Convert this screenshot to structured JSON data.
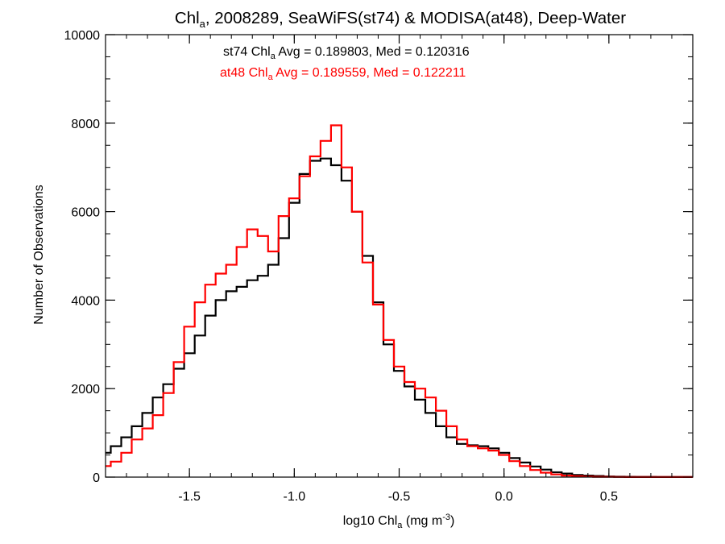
{
  "chart_data": {
    "type": "line",
    "title": {
      "pre": "Chl",
      "sub": "a",
      "post": ", 2008289, SeaWiFS(st74) & MODISA(at48), Deep-Water"
    },
    "xlabel": {
      "pre": "log10 Chl",
      "sub": "a",
      "mid": " (mg m",
      "sup": "-3",
      "post": ")"
    },
    "ylabel": "Number of Observations",
    "xlim": [
      -1.9,
      0.9
    ],
    "ylim": [
      0,
      10000
    ],
    "x_ticks": [
      {
        "value": -1.5,
        "label": "-1.5"
      },
      {
        "value": -1.0,
        "label": "-1.0"
      },
      {
        "value": -0.5,
        "label": "-0.5"
      },
      {
        "value": 0.0,
        "label": "0.0"
      },
      {
        "value": 0.5,
        "label": "0.5"
      }
    ],
    "y_ticks": [
      {
        "value": 0,
        "label": "0"
      },
      {
        "value": 2000,
        "label": "2000"
      },
      {
        "value": 4000,
        "label": "4000"
      },
      {
        "value": 6000,
        "label": "6000"
      },
      {
        "value": 8000,
        "label": "8000"
      },
      {
        "value": 10000,
        "label": "10000"
      }
    ],
    "grid": false,
    "step_style": "histogram",
    "annotations": [
      {
        "pre": "st74 Chl",
        "sub": "a",
        "post": " Avg = 0.189803, Med = 0.120316",
        "color": "#000000"
      },
      {
        "pre": "at48 Chl",
        "sub": "a",
        "post": " Avg = 0.189559, Med = 0.122211",
        "color": "#ff0000"
      }
    ],
    "series": [
      {
        "key": "st74",
        "color": "#000000",
        "x": [
          -1.9,
          -1.85,
          -1.8,
          -1.75,
          -1.7,
          -1.65,
          -1.6,
          -1.55,
          -1.5,
          -1.45,
          -1.4,
          -1.35,
          -1.3,
          -1.25,
          -1.2,
          -1.15,
          -1.1,
          -1.05,
          -1.0,
          -0.95,
          -0.9,
          -0.85,
          -0.8,
          -0.75,
          -0.7,
          -0.65,
          -0.6,
          -0.55,
          -0.5,
          -0.45,
          -0.4,
          -0.35,
          -0.3,
          -0.25,
          -0.2,
          -0.15,
          -0.1,
          -0.05,
          0.0,
          0.05,
          0.1,
          0.15,
          0.2,
          0.25,
          0.3,
          0.35,
          0.4,
          0.45,
          0.5,
          0.55,
          0.6,
          0.65,
          0.7,
          0.75,
          0.8,
          0.85,
          0.9
        ],
        "y": [
          550,
          700,
          900,
          1150,
          1450,
          1800,
          2100,
          2450,
          2800,
          3200,
          3650,
          4000,
          4200,
          4300,
          4450,
          4550,
          4800,
          5400,
          6200,
          6850,
          7150,
          7200,
          7050,
          6700,
          6000,
          5000,
          3950,
          3000,
          2400,
          2050,
          1750,
          1450,
          1150,
          900,
          750,
          720,
          700,
          650,
          550,
          430,
          330,
          240,
          170,
          110,
          80,
          50,
          35,
          25,
          15,
          10,
          8,
          5,
          5,
          3,
          2,
          2,
          2
        ]
      },
      {
        "key": "at48",
        "color": "#ff0000",
        "x": [
          -1.9,
          -1.85,
          -1.8,
          -1.75,
          -1.7,
          -1.65,
          -1.6,
          -1.55,
          -1.5,
          -1.45,
          -1.4,
          -1.35,
          -1.3,
          -1.25,
          -1.2,
          -1.15,
          -1.1,
          -1.05,
          -1.0,
          -0.95,
          -0.9,
          -0.85,
          -0.8,
          -0.75,
          -0.7,
          -0.65,
          -0.6,
          -0.55,
          -0.5,
          -0.45,
          -0.4,
          -0.35,
          -0.3,
          -0.25,
          -0.2,
          -0.15,
          -0.1,
          -0.05,
          0.0,
          0.05,
          0.1,
          0.15,
          0.2,
          0.25,
          0.3,
          0.35,
          0.4,
          0.45,
          0.5,
          0.55,
          0.6,
          0.65,
          0.7,
          0.75,
          0.8,
          0.85,
          0.9
        ],
        "y": [
          250,
          350,
          550,
          850,
          1100,
          1400,
          1900,
          2600,
          3400,
          3950,
          4350,
          4600,
          4800,
          5200,
          5600,
          5450,
          5100,
          5900,
          6300,
          6800,
          7250,
          7600,
          7950,
          7000,
          6000,
          4850,
          3900,
          3100,
          2500,
          2150,
          2000,
          1800,
          1500,
          1150,
          850,
          700,
          650,
          600,
          500,
          360,
          250,
          160,
          100,
          60,
          35,
          20,
          12,
          8,
          5,
          3,
          2,
          1,
          1,
          1,
          1,
          1,
          1
        ]
      }
    ]
  }
}
